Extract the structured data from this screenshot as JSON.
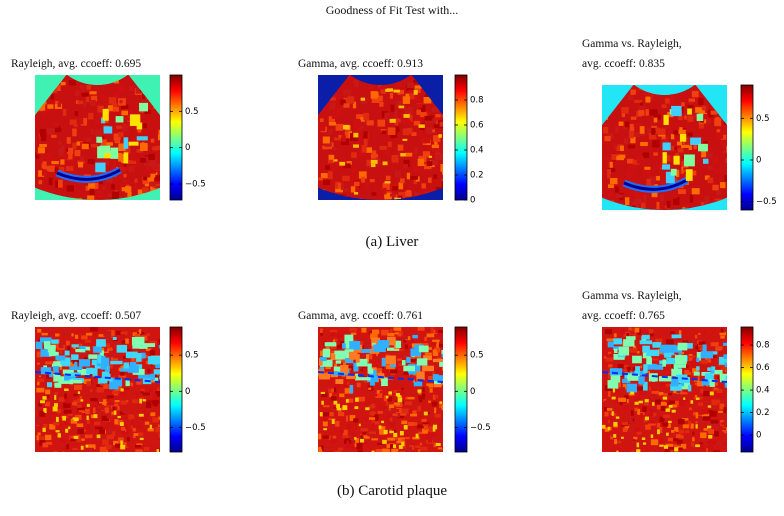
{
  "title": "Goodness of Fit Test with...",
  "rows": [
    {
      "caption": "(a) Liver",
      "kind": "liver",
      "panels": [
        {
          "title": [
            "Rayleigh, avg. ccoeff: 0.695"
          ],
          "background": "#3ff2b4",
          "clim": [
            -0.72,
            1.0
          ],
          "ticks": [
            {
              "value": -0.5,
              "label": "−0.5"
            },
            0,
            0.5
          ]
        },
        {
          "title": [
            "Gamma, avg. ccoeff: 0.913"
          ],
          "background": "#0a1ea8",
          "clim": [
            0,
            1.0
          ],
          "ticks": [
            0,
            0.2,
            0.4,
            0.6,
            0.8
          ]
        },
        {
          "title": [
            "Gamma vs. Rayleigh,",
            " avg. ccoeff: 0.835"
          ],
          "background": "#22e6f6",
          "clim": [
            -0.6,
            0.9
          ],
          "ticks": [
            {
              "value": -0.5,
              "label": "−0.5"
            },
            0,
            0.5
          ]
        }
      ]
    },
    {
      "caption": "(b) Carotid plaque",
      "kind": "carotid",
      "panels": [
        {
          "title": [
            "Rayleigh, avg. ccoeff: 0.507"
          ],
          "clim": [
            -0.84,
            0.89
          ],
          "ticks": [
            {
              "value": -0.5,
              "label": "−0.5"
            },
            0,
            0.5
          ]
        },
        {
          "title": [
            "Gamma, avg. ccoeff: 0.761"
          ],
          "clim": [
            -0.84,
            0.89
          ],
          "ticks": [
            {
              "value": -0.5,
              "label": "−0.5"
            },
            0,
            0.5
          ]
        },
        {
          "title": [
            "Gamma vs. Rayleigh,",
            " avg. ccoeff: 0.765"
          ],
          "clim": [
            -0.15,
            0.96
          ],
          "ticks": [
            0,
            0.2,
            0.4,
            0.6,
            0.8
          ]
        }
      ]
    }
  ]
}
